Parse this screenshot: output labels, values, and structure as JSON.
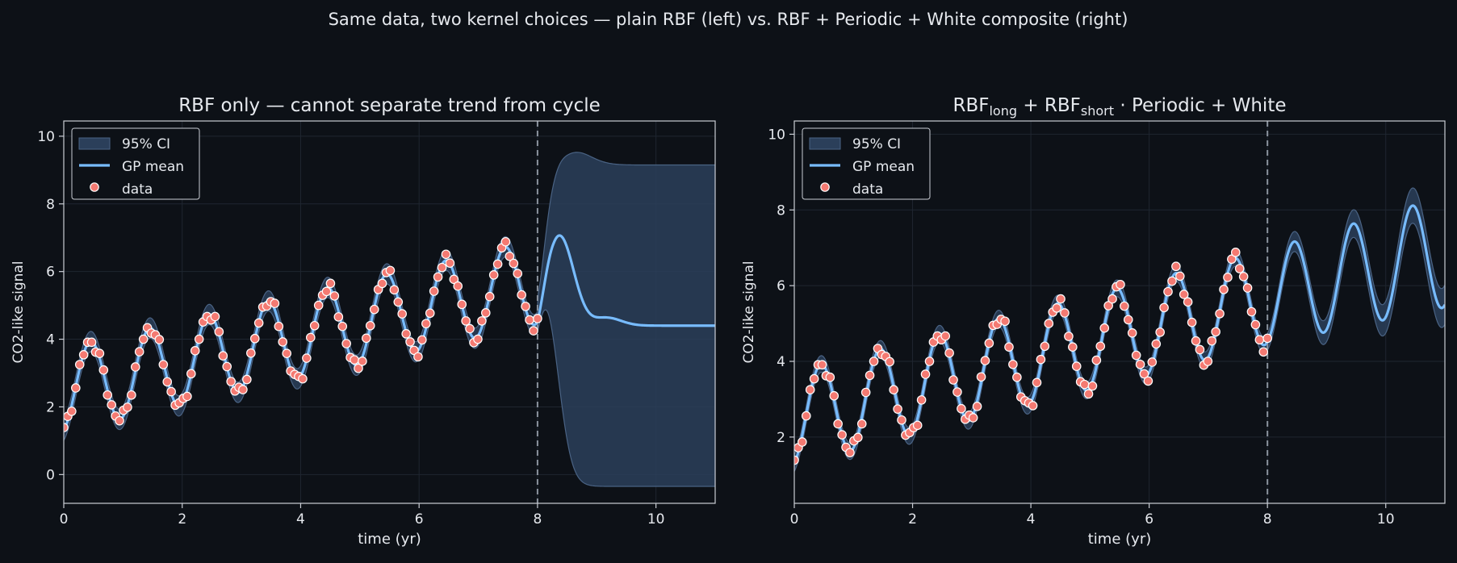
{
  "figure": {
    "suptitle": "Same data, two kernel choices  —  plain RBF (left) vs. RBF + Periodic + White composite (right)"
  },
  "colors": {
    "background": "#0d1117",
    "axes_face": "#0d1117",
    "spine": "#c9cdd4",
    "grid": "#1f2630",
    "text": "#e6e9ee",
    "mean": "#78bcff",
    "band_fill": "#2b3f5a",
    "band_edge": "#4a6384",
    "point_fill": "#f47a72",
    "point_edge": "#ffffff",
    "vline": "#8b939e",
    "legend_bg": "#0d1117",
    "legend_edge": "#c9cdd4"
  },
  "chart_data": [
    {
      "type": "line",
      "title": "RBF only — cannot separate trend from cycle",
      "title_parts": [],
      "xlabel": "time (yr)",
      "ylabel": "CO2-like signal",
      "xlim": [
        0,
        11
      ],
      "ylim": [
        -0.85,
        10.45
      ],
      "xticks": [
        0,
        2,
        4,
        6,
        8,
        10
      ],
      "yticks": [
        0,
        2,
        4,
        6,
        8,
        10
      ],
      "grid": true,
      "legend": {
        "placement": "upper-left",
        "entries": [
          "95% CI",
          "GP mean",
          "data"
        ]
      },
      "vline_x": 8,
      "mean_model": {
        "kind": "rbf-revert",
        "trend_intercept": 2.5,
        "trend_slope": 0.4,
        "amplitude": 1.25,
        "period": 1.0,
        "phase": 0.2,
        "revert_level": 4.4,
        "extra_wave_amp": 0.8,
        "revert_width": 0.55
      },
      "band_model": {
        "in_sample_halfwidth": 0.3,
        "post_halfwidth": 4.75,
        "post_center": 4.4,
        "hump_top": 9.9,
        "hump_x": 8.4,
        "hump_width": 0.35
      },
      "series": [
        {
          "name": "data",
          "kind": "scatter",
          "points": []
        }
      ]
    },
    {
      "type": "line",
      "title": "",
      "title_parts": [
        {
          "text": "RBF",
          "shift": "base"
        },
        {
          "text": "long",
          "shift": "sub"
        },
        {
          "text": " + RBF",
          "shift": "base"
        },
        {
          "text": "short",
          "shift": "sub"
        },
        {
          "text": " · Periodic + White",
          "shift": "base"
        }
      ],
      "xlabel": "time (yr)",
      "ylabel": "CO2-like signal",
      "xlim": [
        0,
        11
      ],
      "ylim": [
        0.25,
        10.35
      ],
      "xticks": [
        0,
        2,
        4,
        6,
        8,
        10
      ],
      "yticks": [
        2,
        4,
        6,
        8,
        10
      ],
      "grid": true,
      "legend": {
        "placement": "upper-left",
        "entries": [
          "95% CI",
          "GP mean",
          "data"
        ]
      },
      "vline_x": 8,
      "mean_model": {
        "kind": "composite",
        "trend_intercept": 2.5,
        "trend_slope": 0.4,
        "amplitude": 1.25,
        "period": 1.0,
        "phase": 0.2,
        "amp_growth": 0.06
      },
      "band_model": {
        "in_sample_halfwidth": 0.22,
        "post_growth": 0.1
      },
      "series": [
        {
          "name": "data",
          "kind": "scatter",
          "points": []
        }
      ]
    }
  ]
}
